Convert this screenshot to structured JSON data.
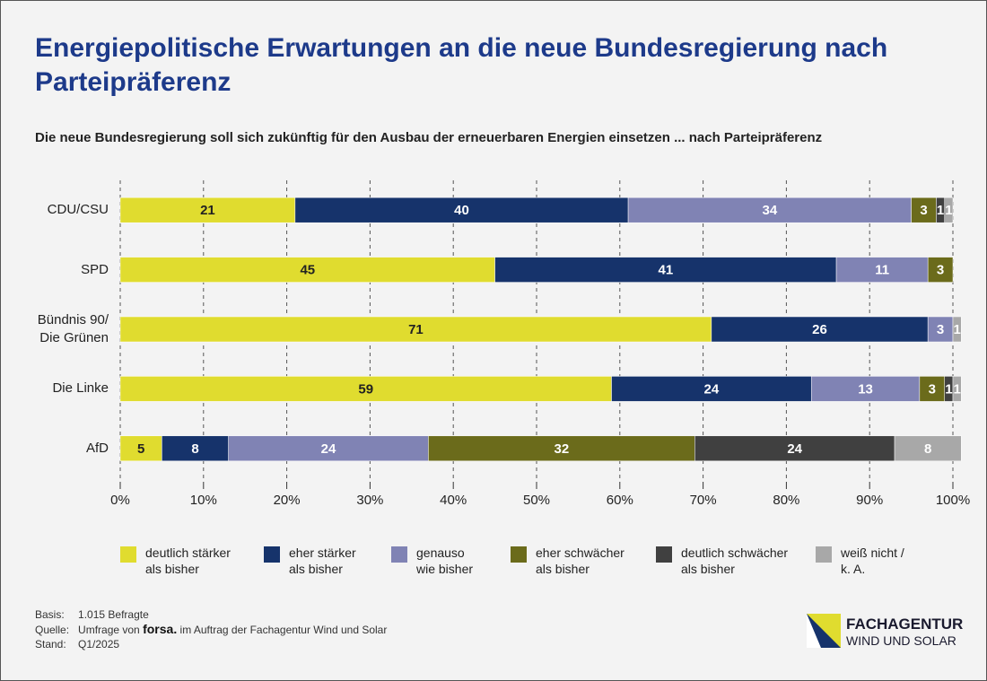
{
  "chart_data": {
    "type": "stacked-bar-horizontal",
    "title": "Energiepolitische Erwartungen an die neue Bundesregierung nach Parteipräferenz",
    "subtitle": "Die neue Bundesregierung soll sich zukünftig für den Ausbau der erneuerbaren Energien einsetzen ... nach Parteipräferenz",
    "categories": [
      "CDU/CSU",
      "SPD",
      "Bündnis 90/\nDie Grünen",
      "Die Linke",
      "AfD"
    ],
    "series": [
      {
        "name": "deutlich stärker\nals bisher",
        "color": "#e0dc2f",
        "label_color": "#222222",
        "values": [
          21,
          45,
          71,
          59,
          5
        ]
      },
      {
        "name": "eher stärker\nals bisher",
        "color": "#16336b",
        "label_color": "#ffffff",
        "values": [
          40,
          41,
          26,
          24,
          8
        ]
      },
      {
        "name": "genauso\nwie bisher",
        "color": "#8083b4",
        "label_color": "#ffffff",
        "values": [
          34,
          11,
          3,
          13,
          24
        ]
      },
      {
        "name": "eher schwächer\nals bisher",
        "color": "#6b6b1b",
        "label_color": "#ffffff",
        "values": [
          3,
          3,
          null,
          3,
          32
        ]
      },
      {
        "name": "deutlich schwächer\nals bisher",
        "color": "#404040",
        "label_color": "#ffffff",
        "values": [
          1,
          null,
          null,
          1,
          24
        ]
      },
      {
        "name": "weiß nicht /\nk. A.",
        "color": "#a8a8a8",
        "label_color": "#ffffff",
        "values": [
          1,
          null,
          1,
          1,
          8
        ]
      }
    ],
    "xlim": [
      0,
      100
    ],
    "xticks": [
      {
        "value": 0,
        "label": "0%"
      },
      {
        "value": 10,
        "label": "10%"
      },
      {
        "value": 20,
        "label": "20%"
      },
      {
        "value": 30,
        "label": "30%"
      },
      {
        "value": 40,
        "label": "40%"
      },
      {
        "value": 50,
        "label": "50%"
      },
      {
        "value": 60,
        "label": "60%"
      },
      {
        "value": 70,
        "label": "70%"
      },
      {
        "value": 80,
        "label": "80%"
      },
      {
        "value": 90,
        "label": "90%"
      },
      {
        "value": 100,
        "label": "100%"
      }
    ],
    "grid": true
  },
  "footer": {
    "basis_label": "Basis:",
    "basis": "1.015 Befragte",
    "source_label": "Quelle:",
    "source_prefix": "Umfrage von",
    "source_brand": "forsa.",
    "source_suffix": "im Auftrag der Fachagentur Wind und Solar",
    "date_label": "Stand:",
    "date": "Q1/2025"
  },
  "logo": {
    "line1": "FACHAGENTUR",
    "line2": "WIND UND SOLAR"
  }
}
